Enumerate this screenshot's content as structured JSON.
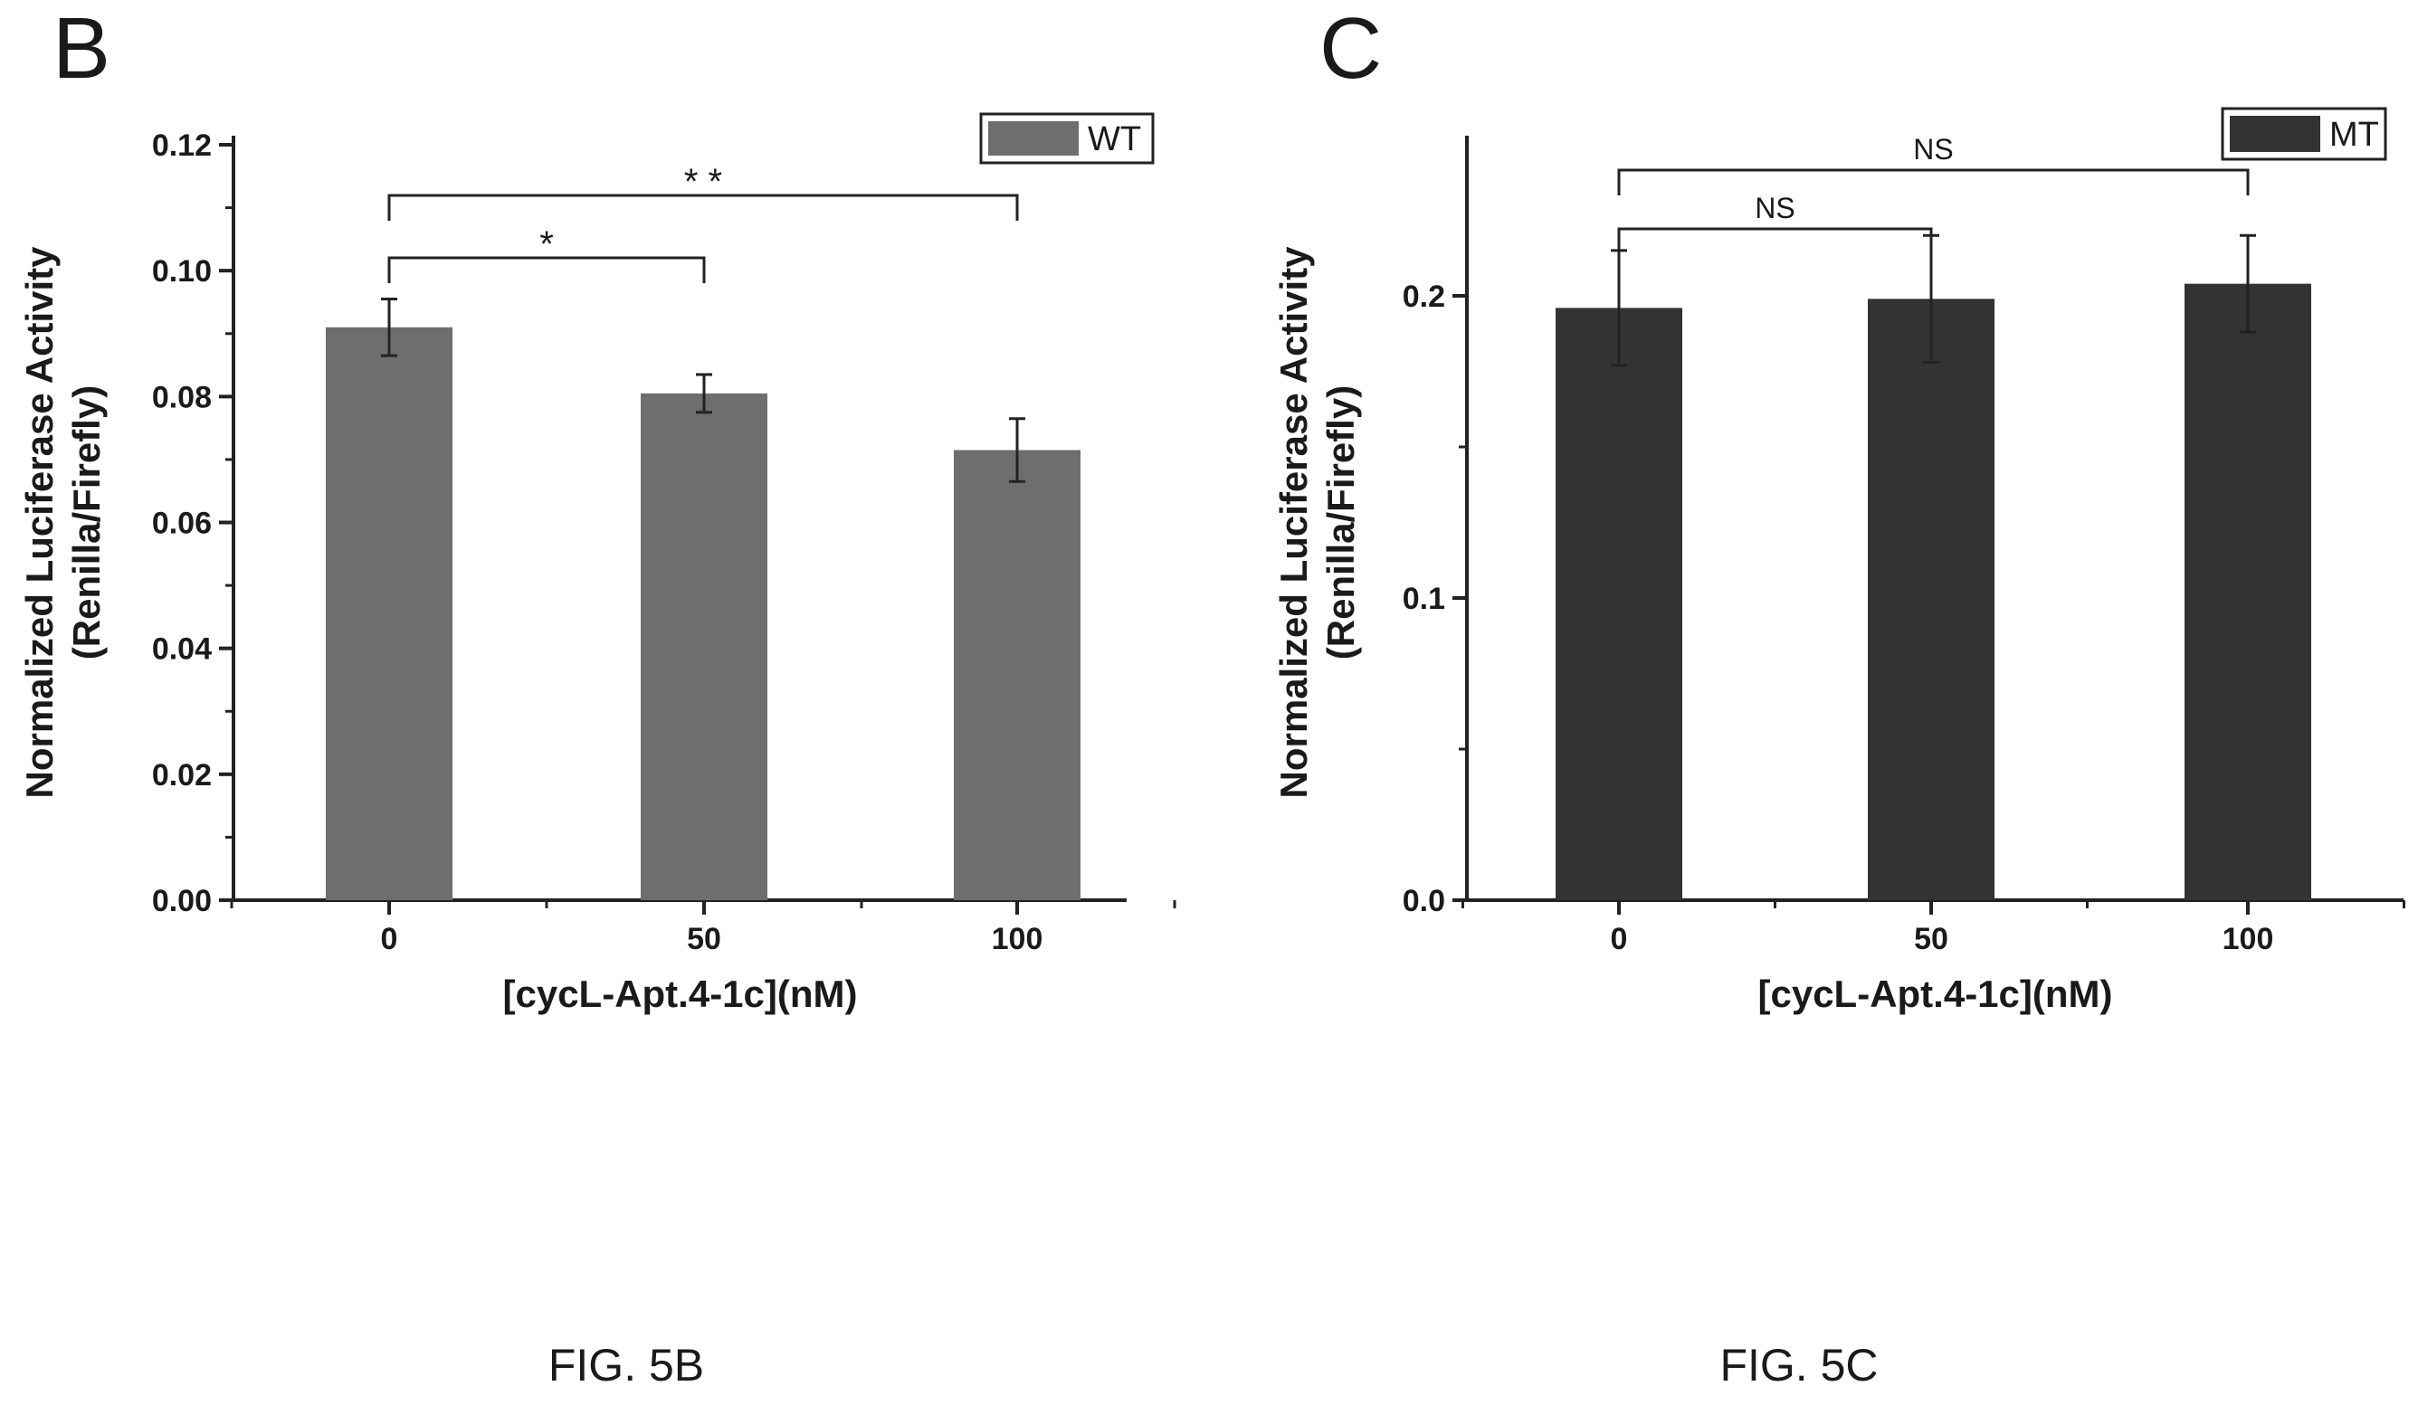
{
  "figures": [
    {
      "panel_letter": "B",
      "caption": "FIG. 5B",
      "chart_data": {
        "type": "bar",
        "categories": [
          "0",
          "50",
          "100"
        ],
        "series": [
          {
            "name": "WT",
            "values": [
              0.091,
              0.0805,
              0.0715
            ],
            "errors": [
              0.0045,
              0.003,
              0.005
            ],
            "color": "#6e6e6e"
          }
        ],
        "xlabel": "[cycL-Apt.4-1c](nM)",
        "ylabel": [
          "Normalized Luciferase Activity",
          "(Renilla/Firefly)"
        ],
        "ylim": [
          0,
          0.12
        ],
        "yticks": [
          "0.00",
          "0.02",
          "0.04",
          "0.06",
          "0.08",
          "0.10",
          "0.12"
        ],
        "grid": false,
        "legend_position": "top-right",
        "significance": [
          {
            "from": 0,
            "to": 1,
            "label": "*"
          },
          {
            "from": 0,
            "to": 2,
            "label": "* *"
          }
        ]
      }
    },
    {
      "panel_letter": "C",
      "caption": "FIG. 5C",
      "chart_data": {
        "type": "bar",
        "categories": [
          "0",
          "50",
          "100"
        ],
        "series": [
          {
            "name": "MT",
            "values": [
              0.196,
              0.199,
              0.204
            ],
            "errors": [
              0.019,
              0.021,
              0.016
            ],
            "color": "#333333"
          }
        ],
        "xlabel": "[cycL-Apt.4-1c](nM)",
        "ylabel": [
          "Normalized Luciferase Activity",
          "(Renilla/Firefly)"
        ],
        "ylim": [
          0,
          0.25
        ],
        "yticks": [
          "0.0",
          "0.1",
          "0.2"
        ],
        "grid": false,
        "legend_position": "top-right",
        "significance": [
          {
            "from": 0,
            "to": 1,
            "label": "NS"
          },
          {
            "from": 0,
            "to": 2,
            "label": "NS"
          }
        ]
      }
    }
  ]
}
